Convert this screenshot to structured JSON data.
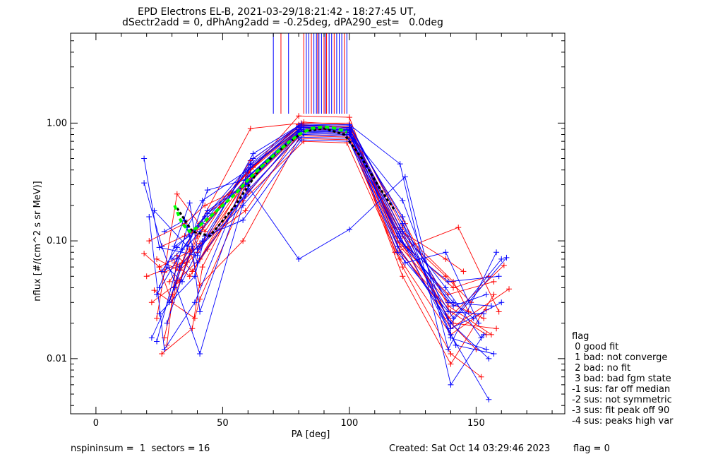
{
  "titles": {
    "line1": "EPD Electrons EL-B, 2021-03-29/18:21:42 - 18:27:45 UT,",
    "line2": "dSectr2add = 0, dPhAng2add = -0.25deg, dPA290_est=   0.0deg"
  },
  "footer": {
    "left": "nspininsum =  1  sectors = 16",
    "created": "Created: Sat Oct 14 03:29:46 2023",
    "flag": "flag = 0"
  },
  "legend": {
    "title": "flag",
    "items": [
      " 0 good fit",
      " 1 bad: not converge",
      " 2 bad: no fit",
      " 3 bad: bad fgm state",
      "-1 sus: far off median",
      "-2 sus: not symmetric",
      "-3 sus: fit peak off 90",
      "-4 sus: peaks high var"
    ]
  },
  "chart_data": {
    "type": "line",
    "title": "EPD Electrons EL-B, 2021-03-29/18:21:42 - 18:27:45 UT,",
    "subtitle": "dSectr2add = 0, dPhAng2add = -0.25deg, dPA290_est=   0.0deg",
    "xlabel": "PA [deg]",
    "ylabel": "nflux [#/(cm^2 s sr MeV)]",
    "xlim": [
      -10,
      185
    ],
    "ylim": [
      0.0034,
      5.8
    ],
    "ylog": true,
    "xticks": [
      0,
      50,
      100,
      150
    ],
    "xtick_labels": [
      "0",
      "50",
      "100",
      "150"
    ],
    "yticks": [
      0.01,
      0.1,
      1.0
    ],
    "ytick_labels": [
      "0.01",
      "0.10",
      "1.00"
    ],
    "colors": {
      "red": "#ff0000",
      "blue": "#0000ff",
      "median": "#000000",
      "fit": "#00ff00"
    },
    "vertical_lines": [
      {
        "x": 70,
        "color": "blue"
      },
      {
        "x": 73,
        "color": "red"
      },
      {
        "x": 76,
        "color": "blue"
      },
      {
        "x": 82,
        "color": "red"
      },
      {
        "x": 83,
        "color": "blue"
      },
      {
        "x": 84,
        "color": "blue"
      },
      {
        "x": 85,
        "color": "red"
      },
      {
        "x": 86,
        "color": "blue"
      },
      {
        "x": 87,
        "color": "blue"
      },
      {
        "x": 87.5,
        "color": "red"
      },
      {
        "x": 88,
        "color": "blue"
      },
      {
        "x": 89,
        "color": "blue"
      },
      {
        "x": 90,
        "color": "red"
      },
      {
        "x": 90.5,
        "color": "blue"
      },
      {
        "x": 91,
        "color": "red"
      },
      {
        "x": 92,
        "color": "blue"
      },
      {
        "x": 93,
        "color": "blue"
      },
      {
        "x": 94,
        "color": "red"
      },
      {
        "x": 95,
        "color": "blue"
      },
      {
        "x": 96,
        "color": "blue"
      },
      {
        "x": 97,
        "color": "blue"
      },
      {
        "x": 98,
        "color": "red"
      },
      {
        "x": 99,
        "color": "blue"
      }
    ],
    "series": [
      {
        "color": "red",
        "x": [
          19,
          25,
          41,
          62,
          80,
          100,
          120,
          140,
          154
        ],
        "y": [
          0.078,
          0.06,
          0.09,
          0.42,
          1.15,
          1.12,
          0.08,
          0.025,
          0.016
        ]
      },
      {
        "color": "red",
        "x": [
          22,
          33,
          41,
          61,
          81,
          100,
          121,
          139,
          161
        ],
        "y": [
          0.03,
          0.045,
          0.14,
          0.9,
          1.0,
          1.0,
          0.13,
          0.022,
          0.062
        ]
      },
      {
        "color": "red",
        "x": [
          24,
          32,
          43,
          61,
          80,
          100,
          119,
          140,
          163
        ],
        "y": [
          0.022,
          0.25,
          0.12,
          0.48,
          0.95,
          0.92,
          0.11,
          0.018,
          0.039
        ]
      },
      {
        "color": "red",
        "x": [
          26,
          38,
          42,
          59,
          80,
          100,
          121,
          140,
          157
        ],
        "y": [
          0.011,
          0.018,
          0.06,
          0.31,
          0.86,
          0.83,
          0.05,
          0.009,
          0.035
        ]
      },
      {
        "color": "red",
        "x": [
          27,
          36,
          44,
          60,
          81,
          100,
          118,
          143,
          159
        ],
        "y": [
          0.054,
          0.066,
          0.15,
          0.38,
          0.92,
          0.87,
          0.08,
          0.13,
          0.025
        ]
      },
      {
        "color": "red",
        "x": [
          23,
          39,
          41,
          58,
          82,
          99,
          121,
          140,
          152
        ],
        "y": [
          0.038,
          0.022,
          0.032,
          0.22,
          0.7,
          0.68,
          0.06,
          0.011,
          0.007
        ]
      },
      {
        "color": "red",
        "x": [
          28,
          32,
          38,
          62,
          80,
          101,
          120,
          141,
          155
        ],
        "y": [
          0.013,
          0.075,
          0.055,
          0.36,
          0.88,
          0.86,
          0.1,
          0.04,
          0.05
        ]
      },
      {
        "color": "red",
        "x": [
          25,
          30,
          40,
          61,
          81,
          100,
          122,
          139,
          156
        ],
        "y": [
          0.06,
          0.03,
          0.11,
          0.42,
          0.96,
          0.93,
          0.14,
          0.028,
          0.016
        ]
      },
      {
        "color": "red",
        "x": [
          21,
          35,
          43,
          59,
          80,
          99,
          120,
          140,
          150
        ],
        "y": [
          0.1,
          0.14,
          0.2,
          0.29,
          0.8,
          0.78,
          0.12,
          0.02,
          0.012
        ]
      },
      {
        "color": "red",
        "x": [
          29,
          37,
          41,
          58,
          80,
          101,
          119,
          141,
          158
        ],
        "y": [
          0.045,
          0.085,
          0.042,
          0.1,
          0.74,
          0.72,
          0.09,
          0.02,
          0.018
        ]
      },
      {
        "color": "red",
        "x": [
          24,
          33,
          40,
          60,
          81,
          100,
          121,
          138,
          148
        ],
        "y": [
          0.07,
          0.056,
          0.08,
          0.33,
          0.9,
          0.86,
          0.11,
          0.05,
          0.03
        ]
      },
      {
        "color": "red",
        "x": [
          27,
          32,
          41,
          62,
          82,
          100,
          120,
          139,
          153
        ],
        "y": [
          0.015,
          0.046,
          0.07,
          0.44,
          1.02,
          0.97,
          0.09,
          0.03,
          0.022
        ]
      },
      {
        "color": "red",
        "x": [
          30,
          38,
          43,
          60,
          80,
          100,
          118,
          138,
          145
        ],
        "y": [
          0.035,
          0.12,
          0.16,
          0.38,
          0.97,
          0.91,
          0.13,
          0.07,
          0.055
        ]
      },
      {
        "color": "red",
        "x": [
          20,
          34,
          41,
          59,
          80,
          99,
          120,
          140,
          154
        ],
        "y": [
          0.05,
          0.065,
          0.095,
          0.18,
          0.82,
          0.8,
          0.07,
          0.016,
          0.026
        ]
      },
      {
        "color": "red",
        "x": [
          26,
          35,
          42,
          61,
          81,
          100,
          121,
          141,
          147
        ],
        "y": [
          0.09,
          0.11,
          0.13,
          0.41,
          0.93,
          0.9,
          0.12,
          0.045,
          0.025
        ]
      },
      {
        "color": "red",
        "x": [
          31,
          37,
          44,
          60,
          80,
          100,
          119,
          139,
          157
        ],
        "y": [
          0.065,
          0.05,
          0.085,
          0.26,
          0.78,
          0.76,
          0.1,
          0.035,
          0.045
        ]
      },
      {
        "color": "blue",
        "x": [
          19,
          25,
          40,
          62,
          80,
          100,
          120,
          140,
          153
        ],
        "y": [
          0.5,
          0.088,
          0.075,
          0.55,
          0.95,
          0.97,
          0.45,
          0.006,
          0.016
        ]
      },
      {
        "color": "blue",
        "x": [
          19,
          26,
          41,
          60,
          80,
          100,
          122,
          139,
          158
        ],
        "y": [
          0.31,
          0.09,
          0.011,
          0.29,
          0.07,
          0.125,
          0.35,
          0.012,
          0.08
        ]
      },
      {
        "color": "blue",
        "x": [
          21,
          27,
          39,
          61,
          81,
          100,
          121,
          140,
          154
        ],
        "y": [
          0.16,
          0.012,
          0.03,
          0.44,
          0.9,
          0.88,
          0.16,
          0.015,
          0.012
        ]
      },
      {
        "color": "blue",
        "x": [
          22,
          31,
          44,
          59,
          80,
          100,
          120,
          141,
          160
        ],
        "y": [
          0.015,
          0.04,
          0.27,
          0.33,
          0.85,
          0.84,
          0.12,
          0.022,
          0.07
        ]
      },
      {
        "color": "blue",
        "x": [
          24,
          36,
          42,
          60,
          81,
          101,
          121,
          139,
          156
        ],
        "y": [
          0.014,
          0.13,
          0.22,
          0.4,
          0.92,
          0.9,
          0.14,
          0.03,
          0.028
        ]
      },
      {
        "color": "blue",
        "x": [
          25,
          37,
          40,
          58,
          82,
          99,
          119,
          140,
          155
        ],
        "y": [
          0.04,
          0.21,
          0.085,
          0.2,
          0.8,
          0.78,
          0.09,
          0.02,
          0.01
        ]
      },
      {
        "color": "blue",
        "x": [
          26,
          32,
          43,
          61,
          80,
          100,
          122,
          138,
          151
        ],
        "y": [
          0.055,
          0.088,
          0.16,
          0.45,
          0.95,
          0.92,
          0.065,
          0.08,
          0.02
        ]
      },
      {
        "color": "blue",
        "x": [
          28,
          38,
          41,
          60,
          80,
          100,
          120,
          140,
          155
        ],
        "y": [
          0.02,
          0.09,
          0.025,
          0.35,
          0.88,
          0.86,
          0.11,
          0.016,
          0.0045
        ]
      },
      {
        "color": "blue",
        "x": [
          29,
          33,
          42,
          62,
          81,
          100,
          121,
          142,
          157
        ],
        "y": [
          0.03,
          0.06,
          0.1,
          0.5,
          0.98,
          0.96,
          0.14,
          0.013,
          0.011
        ]
      },
      {
        "color": "blue",
        "x": [
          30,
          34,
          44,
          59,
          80,
          100,
          119,
          139,
          153
        ],
        "y": [
          0.07,
          0.085,
          0.17,
          0.3,
          0.84,
          0.82,
          0.08,
          0.025,
          0.024
        ]
      },
      {
        "color": "blue",
        "x": [
          23,
          36,
          41,
          61,
          82,
          99,
          121,
          140,
          160
        ],
        "y": [
          0.18,
          0.09,
          0.12,
          0.37,
          0.9,
          0.87,
          0.22,
          0.018,
          0.03
        ]
      },
      {
        "color": "blue",
        "x": [
          27,
          35,
          40,
          60,
          80,
          101,
          120,
          141,
          149
        ],
        "y": [
          0.12,
          0.15,
          0.065,
          0.27,
          0.76,
          0.74,
          0.1,
          0.03,
          0.022
        ]
      },
      {
        "color": "blue",
        "x": [
          25,
          39,
          43,
          58,
          81,
          100,
          122,
          139,
          159
        ],
        "y": [
          0.024,
          0.05,
          0.11,
          0.15,
          0.72,
          0.7,
          0.09,
          0.045,
          0.05
        ]
      },
      {
        "color": "blue",
        "x": [
          31,
          37,
          42,
          61,
          80,
          100,
          120,
          140,
          162
        ],
        "y": [
          0.09,
          0.11,
          0.14,
          0.42,
          0.93,
          0.9,
          0.13,
          0.02,
          0.072
        ]
      },
      {
        "color": "blue",
        "x": [
          24,
          32,
          44,
          60,
          81,
          100,
          121,
          138,
          152
        ],
        "y": [
          0.035,
          0.07,
          0.18,
          0.31,
          0.86,
          0.84,
          0.12,
          0.04,
          0.015
        ]
      },
      {
        "color": "blue",
        "x": [
          28,
          34,
          41,
          59,
          80,
          100,
          119,
          141,
          154
        ],
        "y": [
          0.06,
          0.045,
          0.09,
          0.24,
          0.82,
          0.8,
          0.11,
          0.028,
          0.035
        ]
      }
    ],
    "median": {
      "color": "median",
      "x": [
        32,
        38,
        45,
        55,
        65,
        75,
        82,
        90,
        98,
        105,
        112,
        118
      ],
      "y": [
        0.19,
        0.12,
        0.11,
        0.2,
        0.42,
        0.65,
        0.85,
        0.9,
        0.8,
        0.5,
        0.28,
        0.18
      ]
    },
    "fit": {
      "color": "fit",
      "x": [
        31,
        34,
        37,
        40,
        45,
        50,
        55,
        60,
        65,
        70,
        75,
        80,
        85,
        90,
        95,
        99
      ],
      "y": [
        0.2,
        0.14,
        0.12,
        0.13,
        0.16,
        0.2,
        0.25,
        0.33,
        0.42,
        0.53,
        0.66,
        0.8,
        0.9,
        0.93,
        0.9,
        0.84
      ]
    }
  }
}
